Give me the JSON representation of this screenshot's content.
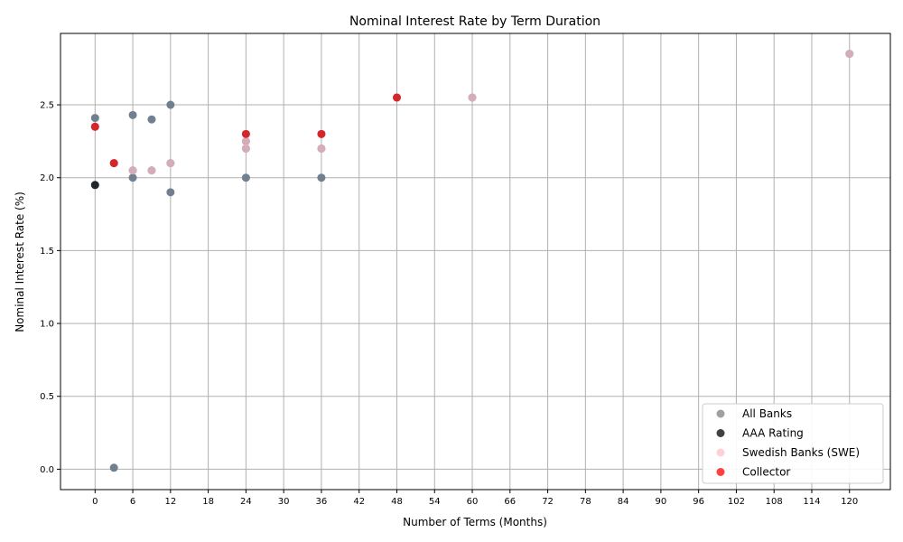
{
  "chart_data": {
    "type": "scatter",
    "title": "Nominal Interest Rate by Term Duration",
    "xlabel": "Number of Terms (Months)",
    "ylabel": "Nominal Interest Rate (%)",
    "xlim": [
      -5.5,
      126.5
    ],
    "ylim": [
      -0.14,
      2.99
    ],
    "xticks": [
      0,
      6,
      12,
      18,
      24,
      30,
      36,
      42,
      48,
      54,
      60,
      66,
      72,
      78,
      84,
      90,
      96,
      102,
      108,
      114,
      120
    ],
    "yticks": [
      0.0,
      0.5,
      1.0,
      1.5,
      2.0,
      2.5
    ],
    "grid": true,
    "legend_position": "lower-right",
    "series": [
      {
        "name": "All Banks",
        "color": "#808080",
        "points": [
          {
            "x": 0,
            "y": 2.41
          },
          {
            "x": 0,
            "y": 2.35
          },
          {
            "x": 0,
            "y": 1.95
          },
          {
            "x": 3,
            "y": 2.1
          },
          {
            "x": 3,
            "y": 0.01
          },
          {
            "x": 6,
            "y": 2.43
          },
          {
            "x": 6,
            "y": 2.05
          },
          {
            "x": 6,
            "y": 2.0
          },
          {
            "x": 9,
            "y": 2.4
          },
          {
            "x": 9,
            "y": 2.05
          },
          {
            "x": 12,
            "y": 2.5
          },
          {
            "x": 12,
            "y": 2.1
          },
          {
            "x": 12,
            "y": 1.9
          },
          {
            "x": 24,
            "y": 2.3
          },
          {
            "x": 24,
            "y": 2.25
          },
          {
            "x": 24,
            "y": 2.2
          },
          {
            "x": 24,
            "y": 2.0
          },
          {
            "x": 36,
            "y": 2.3
          },
          {
            "x": 36,
            "y": 2.2
          },
          {
            "x": 36,
            "y": 2.0
          },
          {
            "x": 48,
            "y": 2.55
          },
          {
            "x": 60,
            "y": 2.55
          },
          {
            "x": 120,
            "y": 2.85
          }
        ]
      },
      {
        "name": "AAA Rating",
        "color": "#000000",
        "points": [
          {
            "x": 0,
            "y": 1.95
          }
        ]
      },
      {
        "name": "Swedish Banks (SWE)",
        "color": "#ffc0cb",
        "points": [
          {
            "x": 6,
            "y": 2.05
          },
          {
            "x": 9,
            "y": 2.05
          },
          {
            "x": 12,
            "y": 2.1
          },
          {
            "x": 24,
            "y": 2.25
          },
          {
            "x": 24,
            "y": 2.2
          },
          {
            "x": 36,
            "y": 2.2
          },
          {
            "x": 60,
            "y": 2.55
          },
          {
            "x": 120,
            "y": 2.85
          }
        ]
      },
      {
        "name": "Collector",
        "color": "#ff0000",
        "points": [
          {
            "x": 0,
            "y": 2.35
          },
          {
            "x": 3,
            "y": 2.1
          },
          {
            "x": 24,
            "y": 2.3
          },
          {
            "x": 36,
            "y": 2.3
          },
          {
            "x": 48,
            "y": 2.55
          }
        ]
      }
    ],
    "base_point_color": "#708090"
  }
}
